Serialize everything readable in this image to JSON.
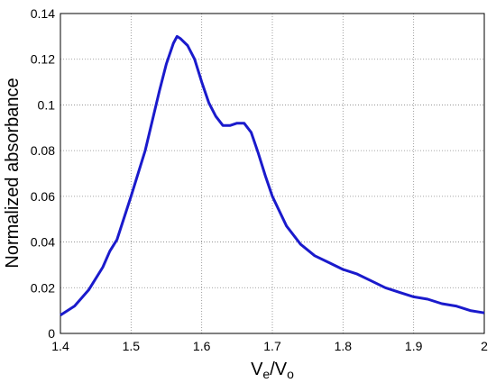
{
  "chart_data": {
    "type": "line",
    "xlabel": [
      "V",
      "e",
      "/V",
      "o"
    ],
    "ylabel": "Normalized absorbance",
    "x": [
      1.4,
      1.42,
      1.44,
      1.46,
      1.47,
      1.48,
      1.5,
      1.52,
      1.54,
      1.55,
      1.56,
      1.565,
      1.57,
      1.58,
      1.59,
      1.6,
      1.61,
      1.62,
      1.63,
      1.64,
      1.65,
      1.66,
      1.67,
      1.68,
      1.69,
      1.7,
      1.72,
      1.74,
      1.76,
      1.78,
      1.8,
      1.82,
      1.84,
      1.86,
      1.88,
      1.9,
      1.92,
      1.94,
      1.96,
      1.98,
      2.0
    ],
    "series": [
      {
        "color": "#1a1acc",
        "values": [
          0.008,
          0.012,
          0.019,
          0.029,
          0.036,
          0.041,
          0.06,
          0.08,
          0.106,
          0.118,
          0.127,
          0.13,
          0.129,
          0.126,
          0.12,
          0.11,
          0.101,
          0.095,
          0.091,
          0.091,
          0.092,
          0.092,
          0.088,
          0.079,
          0.069,
          0.06,
          0.047,
          0.039,
          0.034,
          0.031,
          0.028,
          0.026,
          0.023,
          0.02,
          0.018,
          0.016,
          0.015,
          0.013,
          0.012,
          0.01,
          0.009
        ]
      }
    ],
    "xlim": [
      1.4,
      2
    ],
    "xticks": [
      1.4,
      1.5,
      1.6,
      1.7,
      1.8,
      1.9,
      2
    ],
    "ylim": [
      0,
      0.14
    ],
    "yticks": [
      0,
      0.02,
      0.04,
      0.06,
      0.08,
      0.1,
      0.12,
      0.14
    ],
    "grid": true
  }
}
